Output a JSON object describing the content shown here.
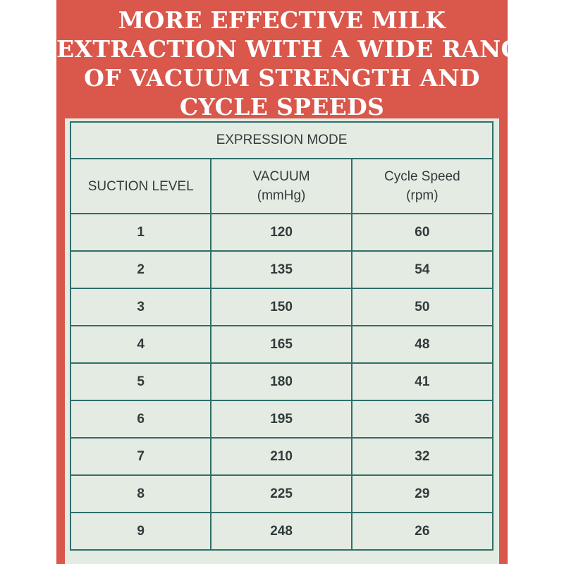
{
  "title_lines": [
    "MORE EFFECTIVE MILK",
    "EXTRACTION WITH A WIDE RANGE",
    "OF VACUUM STRENGTH AND",
    "CYCLE SPEEDS"
  ],
  "table": {
    "mode_header": "EXPRESSION MODE",
    "columns": {
      "level": "SUCTION LEVEL",
      "vacuum": [
        "VACUUM",
        "(mmHg)"
      ],
      "cycle": [
        "Cycle Speed",
        "(rpm)"
      ]
    },
    "rows": [
      {
        "level": "1",
        "vacuum": "120",
        "cycle": "60"
      },
      {
        "level": "2",
        "vacuum": "135",
        "cycle": "54"
      },
      {
        "level": "3",
        "vacuum": "150",
        "cycle": "50"
      },
      {
        "level": "4",
        "vacuum": "165",
        "cycle": "48"
      },
      {
        "level": "5",
        "vacuum": "180",
        "cycle": "41"
      },
      {
        "level": "6",
        "vacuum": "195",
        "cycle": "36"
      },
      {
        "level": "7",
        "vacuum": "210",
        "cycle": "32"
      },
      {
        "level": "8",
        "vacuum": "225",
        "cycle": "29"
      },
      {
        "level": "9",
        "vacuum": "248",
        "cycle": "26"
      }
    ]
  },
  "colors": {
    "panel": "#d9574b",
    "title_text": "#ffffff",
    "table_bg": "#e4ebe2",
    "table_border": "#2f6e69",
    "table_text": "#303b3b"
  }
}
